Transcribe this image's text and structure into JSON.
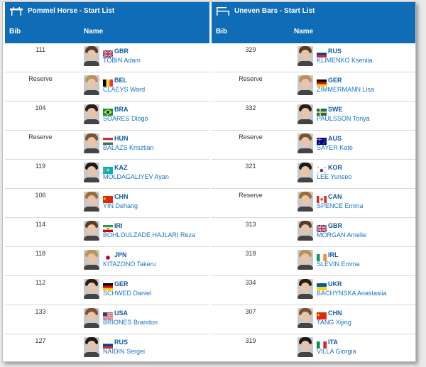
{
  "left": {
    "title": "Pommel Horse - Start List",
    "icon": "pommel-horse-icon",
    "col_bib": "Bib",
    "col_name": "Name",
    "rows": [
      {
        "bib": "111",
        "code": "GBR",
        "name": "TOBIN Adam",
        "flag": "gbr"
      },
      {
        "bib": "Reserve",
        "code": "BEL",
        "name": "CLAEYS Ward",
        "flag": "bel"
      },
      {
        "bib": "104",
        "code": "BRA",
        "name": "SOARES Diogo",
        "flag": "bra"
      },
      {
        "bib": "Reserve",
        "code": "HUN",
        "name": "BALAZS Krisztian",
        "flag": "hun"
      },
      {
        "bib": "119",
        "code": "KAZ",
        "name": "MOLDAGALIYEV Ayan",
        "flag": "kaz"
      },
      {
        "bib": "106",
        "code": "CHN",
        "name": "YIN Dehang",
        "flag": "chn"
      },
      {
        "bib": "114",
        "code": "IRI",
        "name": "BOHLOULZADE HAJLARI Reza",
        "flag": "iri"
      },
      {
        "bib": "118",
        "code": "JPN",
        "name": "KITAZONO Takeru",
        "flag": "jpn"
      },
      {
        "bib": "112",
        "code": "GER",
        "name": "SCHWED Daniel",
        "flag": "ger"
      },
      {
        "bib": "133",
        "code": "USA",
        "name": "BRIONES Brandon",
        "flag": "usa"
      },
      {
        "bib": "127",
        "code": "RUS",
        "name": "NAIDIN Sergei",
        "flag": "rus"
      }
    ]
  },
  "right": {
    "title": "Uneven Bars - Start List",
    "icon": "uneven-bars-icon",
    "col_bib": "Bib",
    "col_name": "Name",
    "rows": [
      {
        "bib": "329",
        "code": "RUS",
        "name": "KLIMENKO Kseniia",
        "flag": "rus"
      },
      {
        "bib": "Reserve",
        "code": "GER",
        "name": "ZIMMERMANN Lisa",
        "flag": "ger"
      },
      {
        "bib": "332",
        "code": "SWE",
        "name": "PAULSSON Tonya",
        "flag": "swe"
      },
      {
        "bib": "Reserve",
        "code": "AUS",
        "name": "SAYER Kate",
        "flag": "aus"
      },
      {
        "bib": "321",
        "code": "KOR",
        "name": "LEE Yunseo",
        "flag": "kor"
      },
      {
        "bib": "Reserve",
        "code": "CAN",
        "name": "SPENCE Emma",
        "flag": "can"
      },
      {
        "bib": "313",
        "code": "GBR",
        "name": "MORGAN Amelie",
        "flag": "gbr"
      },
      {
        "bib": "318",
        "code": "IRL",
        "name": "SLEVIN Emma",
        "flag": "irl"
      },
      {
        "bib": "334",
        "code": "UKR",
        "name": "BACHYNSKA Anastasiia",
        "flag": "ukr"
      },
      {
        "bib": "307",
        "code": "CHN",
        "name": "TANG Xijing",
        "flag": "chn"
      },
      {
        "bib": "319",
        "code": "ITA",
        "name": "VILLA Giorgia",
        "flag": "ita"
      }
    ]
  },
  "colors": {
    "header": "#0f6cb6",
    "link": "#1a73c4",
    "code": "#0f5aa0"
  }
}
